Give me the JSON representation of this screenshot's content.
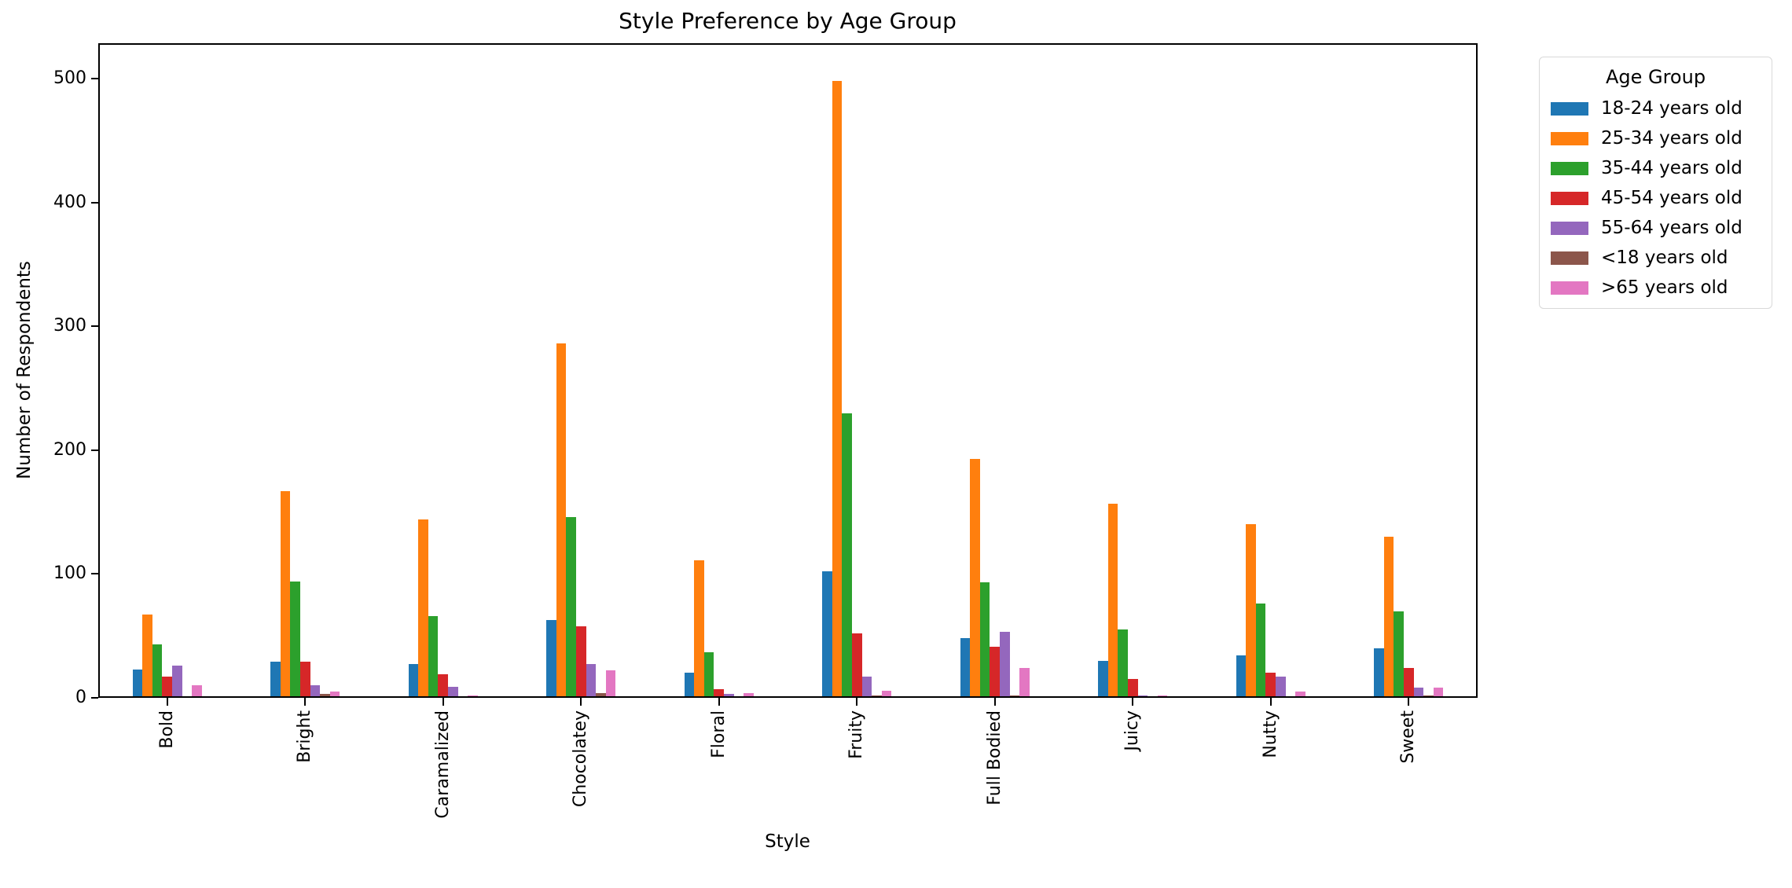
{
  "chart_data": {
    "type": "bar",
    "title": "Style Preference by Age Group",
    "xlabel": "Style",
    "ylabel": "Number of Respondents",
    "ylim": [
      0,
      500
    ],
    "yticks": [
      0,
      100,
      200,
      300,
      400,
      500
    ],
    "grid": false,
    "legend": {
      "title": "Age Group",
      "position": "outside-right"
    },
    "categories": [
      "Bold",
      "Bright",
      "Caramalized",
      "Chocolatey",
      "Floral",
      "Fruity",
      "Full Bodied",
      "Juicy",
      "Nutty",
      "Sweet"
    ],
    "series": [
      {
        "name": "18-24 years old",
        "color": "#1f77b4",
        "values": [
          23,
          29,
          27,
          63,
          20,
          102,
          48,
          30,
          34,
          40
        ]
      },
      {
        "name": "25-34 years old",
        "color": "#ff7f0e",
        "values": [
          67,
          167,
          144,
          286,
          111,
          498,
          193,
          157,
          140,
          130
        ]
      },
      {
        "name": "35-44 years old",
        "color": "#2ca02c",
        "values": [
          43,
          94,
          66,
          146,
          37,
          230,
          93,
          55,
          76,
          70
        ]
      },
      {
        "name": "45-54 years old",
        "color": "#d62728",
        "values": [
          17,
          29,
          19,
          58,
          7,
          52,
          41,
          15,
          20,
          24
        ]
      },
      {
        "name": "55-64 years old",
        "color": "#9467bd",
        "values": [
          26,
          10,
          9,
          27,
          3,
          17,
          53,
          2,
          17,
          8
        ]
      },
      {
        "name": "<18 years old",
        "color": "#8c564b",
        "values": [
          0,
          3,
          0,
          4,
          0,
          2,
          2,
          0,
          0,
          2
        ]
      },
      {
        "name": ">65 years old",
        "color": "#e377c2",
        "values": [
          10,
          5,
          2,
          22,
          4,
          6,
          24,
          2,
          5,
          8
        ]
      }
    ]
  }
}
